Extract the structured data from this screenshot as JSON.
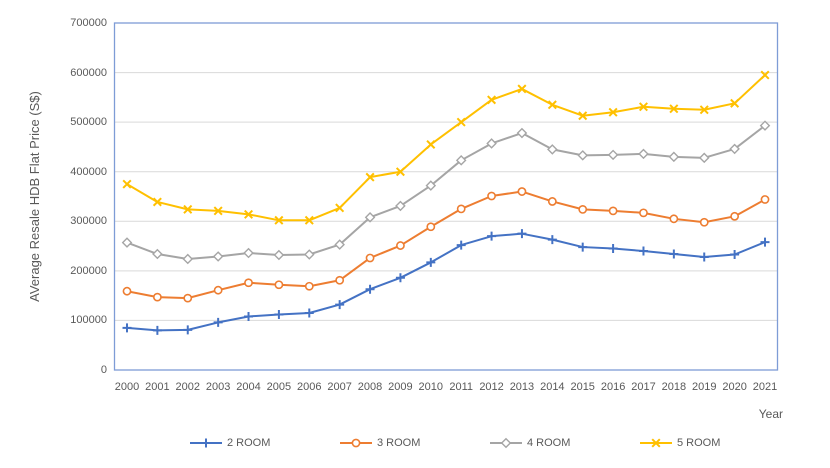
{
  "chart_data": {
    "type": "line",
    "title": "",
    "xlabel": "Year",
    "ylabel": "AVerage Resale HDB Flat Price (S$)",
    "x": [
      "2000",
      "2001",
      "2002",
      "2003",
      "2004",
      "2005",
      "2006",
      "2007",
      "2008",
      "2009",
      "2010",
      "2011",
      "2012",
      "2013",
      "2014",
      "2015",
      "2016",
      "2017",
      "2018",
      "2019",
      "2020",
      "2021"
    ],
    "ylim": [
      0,
      700000
    ],
    "ytick_step": 100000,
    "grid": "horizontal",
    "legend_position": "bottom",
    "series": [
      {
        "name": "2 ROOM",
        "color": "#4472C4",
        "marker": "plus",
        "values": [
          85000,
          80000,
          81000,
          96000,
          108000,
          112000,
          115000,
          132000,
          163000,
          186000,
          217000,
          252000,
          270000,
          275000,
          263000,
          248000,
          245000,
          240000,
          234000,
          228000,
          233000,
          258000
        ]
      },
      {
        "name": "3 ROOM",
        "color": "#ED7D31",
        "marker": "circle-open",
        "values": [
          159000,
          147000,
          145000,
          161000,
          176000,
          172000,
          169000,
          181000,
          226000,
          251000,
          289000,
          325000,
          351000,
          360000,
          340000,
          324000,
          321000,
          317000,
          305000,
          298000,
          310000,
          344000
        ]
      },
      {
        "name": "4 ROOM",
        "color": "#A5A5A5",
        "marker": "diamond-open",
        "values": [
          257000,
          234000,
          224000,
          229000,
          236000,
          232000,
          233000,
          253000,
          308000,
          331000,
          372000,
          423000,
          457000,
          478000,
          445000,
          433000,
          434000,
          436000,
          430000,
          428000,
          446000,
          493000
        ]
      },
      {
        "name": "5 ROOM",
        "color": "#FFC000",
        "marker": "x",
        "values": [
          375000,
          339000,
          324000,
          321000,
          314000,
          302000,
          302000,
          327000,
          389000,
          400000,
          455000,
          500000,
          545000,
          567000,
          535000,
          513000,
          520000,
          531000,
          527000,
          525000,
          538000,
          595000
        ]
      }
    ],
    "colors": {
      "axis_border": "#7E9CD6",
      "gridline": "#D9D9D9",
      "text": "#595959",
      "background": "#FFFFFF"
    }
  }
}
